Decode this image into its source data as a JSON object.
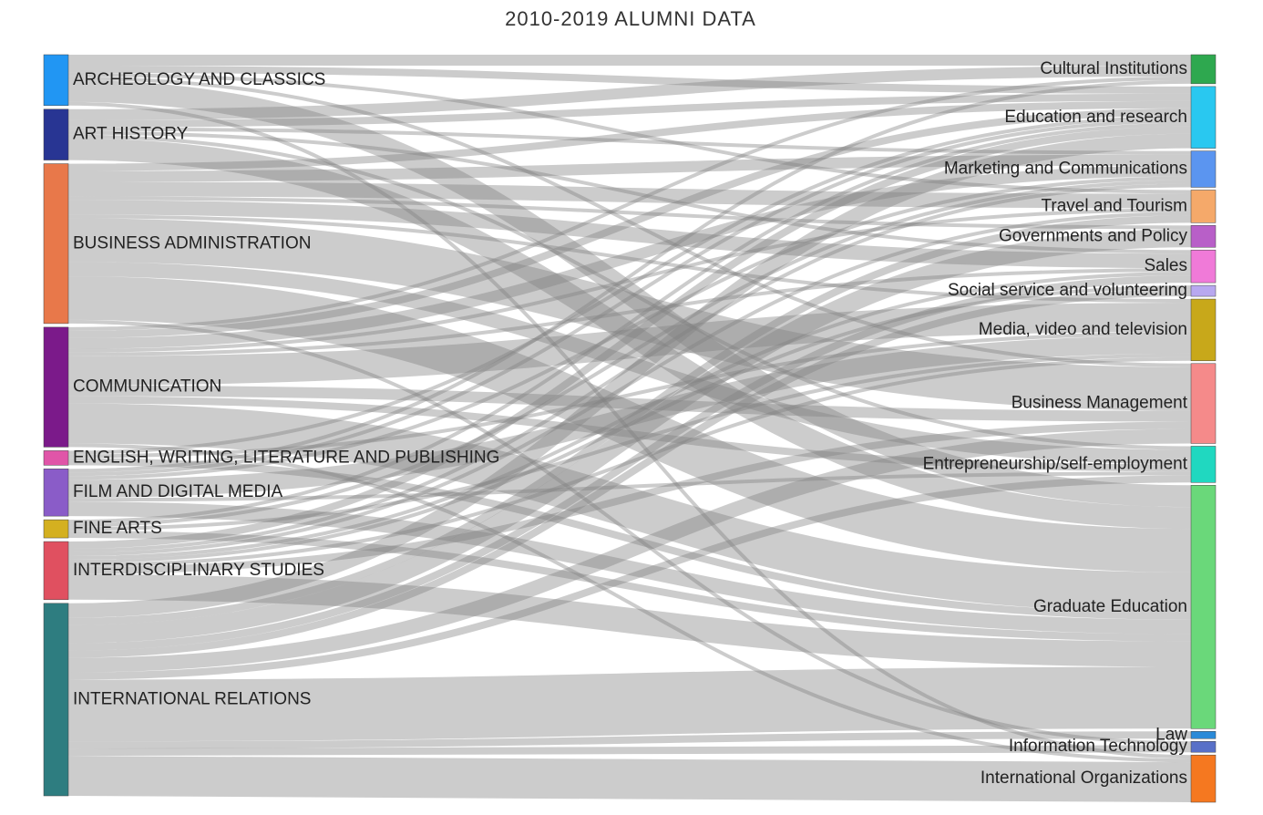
{
  "chart_data": {
    "type": "sankey",
    "title": "2010-2019 ALUMNI DATA",
    "nodes": [
      {
        "name": "ARCHEOLOGY AND CLASSICS",
        "color": "#2196f3"
      },
      {
        "name": "ART HISTORY",
        "color": "#283593"
      },
      {
        "name": "BUSINESS ADMINISTRATION",
        "color": "#e8784a"
      },
      {
        "name": "COMMUNICATION",
        "color": "#7b1a8a"
      },
      {
        "name": "ENGLISH, WRITING, LITERATURE AND PUBLISHING",
        "color": "#e055a8"
      },
      {
        "name": "FILM AND DIGITAL MEDIA",
        "color": "#8a5cc8"
      },
      {
        "name": "FINE ARTS",
        "color": "#d4b020"
      },
      {
        "name": "INTERDISCIPLINARY STUDIES",
        "color": "#e05060"
      },
      {
        "name": "INTERNATIONAL RELATIONS",
        "color": "#2e7d80"
      },
      {
        "name": "Cultural Institutions",
        "color": "#2ea84f"
      },
      {
        "name": "Education and research",
        "color": "#29c8f0"
      },
      {
        "name": "Marketing and Communications",
        "color": "#5b95f0"
      },
      {
        "name": "Travel and Tourism",
        "color": "#f5a96a"
      },
      {
        "name": "Governments and Policy",
        "color": "#b85fc8"
      },
      {
        "name": "Sales",
        "color": "#f07ad8"
      },
      {
        "name": "Social service and volunteering",
        "color": "#b8a8f0"
      },
      {
        "name": "Media, video and television",
        "color": "#c8a81a"
      },
      {
        "name": "Business Management",
        "color": "#f58a8a"
      },
      {
        "name": "Entrepreneurship/self-employment",
        "color": "#20d8c0"
      },
      {
        "name": "Graduate Education",
        "color": "#6ad87a"
      },
      {
        "name": "Law",
        "color": "#2a8ad8"
      },
      {
        "name": "Information Technology",
        "color": "#5870c8"
      },
      {
        "name": "International Organizations",
        "color": "#f57820"
      }
    ],
    "links": [
      {
        "source": 0,
        "target": 9,
        "value": 3
      },
      {
        "source": 0,
        "target": 10,
        "value": 2
      },
      {
        "source": 0,
        "target": 12,
        "value": 1
      },
      {
        "source": 0,
        "target": 17,
        "value": 1
      },
      {
        "source": 0,
        "target": 19,
        "value": 6
      },
      {
        "source": 0,
        "target": 22,
        "value": 1
      },
      {
        "source": 1,
        "target": 9,
        "value": 3
      },
      {
        "source": 1,
        "target": 10,
        "value": 2
      },
      {
        "source": 1,
        "target": 11,
        "value": 1
      },
      {
        "source": 1,
        "target": 14,
        "value": 1
      },
      {
        "source": 1,
        "target": 18,
        "value": 1
      },
      {
        "source": 1,
        "target": 19,
        "value": 6
      },
      {
        "source": 2,
        "target": 10,
        "value": 2
      },
      {
        "source": 2,
        "target": 11,
        "value": 3
      },
      {
        "source": 2,
        "target": 12,
        "value": 4
      },
      {
        "source": 2,
        "target": 13,
        "value": 1
      },
      {
        "source": 2,
        "target": 14,
        "value": 4
      },
      {
        "source": 2,
        "target": 16,
        "value": 1
      },
      {
        "source": 2,
        "target": 17,
        "value": 12
      },
      {
        "source": 2,
        "target": 18,
        "value": 4
      },
      {
        "source": 2,
        "target": 19,
        "value": 12
      },
      {
        "source": 2,
        "target": 21,
        "value": 1
      },
      {
        "source": 3,
        "target": 9,
        "value": 1
      },
      {
        "source": 3,
        "target": 10,
        "value": 2
      },
      {
        "source": 3,
        "target": 11,
        "value": 3
      },
      {
        "source": 3,
        "target": 12,
        "value": 1
      },
      {
        "source": 3,
        "target": 14,
        "value": 1
      },
      {
        "source": 3,
        "target": 16,
        "value": 8
      },
      {
        "source": 3,
        "target": 17,
        "value": 3
      },
      {
        "source": 3,
        "target": 18,
        "value": 2
      },
      {
        "source": 3,
        "target": 19,
        "value": 11
      },
      {
        "source": 3,
        "target": 22,
        "value": 1
      },
      {
        "source": 4,
        "target": 10,
        "value": 1
      },
      {
        "source": 4,
        "target": 16,
        "value": 1
      },
      {
        "source": 4,
        "target": 19,
        "value": 2
      },
      {
        "source": 5,
        "target": 9,
        "value": 1
      },
      {
        "source": 5,
        "target": 10,
        "value": 1
      },
      {
        "source": 5,
        "target": 11,
        "value": 1
      },
      {
        "source": 5,
        "target": 16,
        "value": 5
      },
      {
        "source": 5,
        "target": 18,
        "value": 1
      },
      {
        "source": 5,
        "target": 19,
        "value": 4
      },
      {
        "source": 6,
        "target": 10,
        "value": 1
      },
      {
        "source": 6,
        "target": 11,
        "value": 1
      },
      {
        "source": 6,
        "target": 16,
        "value": 1
      },
      {
        "source": 6,
        "target": 19,
        "value": 2
      },
      {
        "source": 7,
        "target": 10,
        "value": 2
      },
      {
        "source": 7,
        "target": 11,
        "value": 1
      },
      {
        "source": 7,
        "target": 12,
        "value": 1
      },
      {
        "source": 7,
        "target": 14,
        "value": 1
      },
      {
        "source": 7,
        "target": 15,
        "value": 1
      },
      {
        "source": 7,
        "target": 16,
        "value": 1
      },
      {
        "source": 7,
        "target": 17,
        "value": 2
      },
      {
        "source": 7,
        "target": 19,
        "value": 7
      },
      {
        "source": 8,
        "target": 10,
        "value": 4
      },
      {
        "source": 8,
        "target": 12,
        "value": 2
      },
      {
        "source": 8,
        "target": 13,
        "value": 5
      },
      {
        "source": 8,
        "target": 14,
        "value": 2
      },
      {
        "source": 8,
        "target": 15,
        "value": 2
      },
      {
        "source": 8,
        "target": 17,
        "value": 4
      },
      {
        "source": 8,
        "target": 18,
        "value": 2
      },
      {
        "source": 8,
        "target": 19,
        "value": 17
      },
      {
        "source": 8,
        "target": 20,
        "value": 2
      },
      {
        "source": 8,
        "target": 21,
        "value": 2
      },
      {
        "source": 8,
        "target": 22,
        "value": 11
      }
    ]
  }
}
